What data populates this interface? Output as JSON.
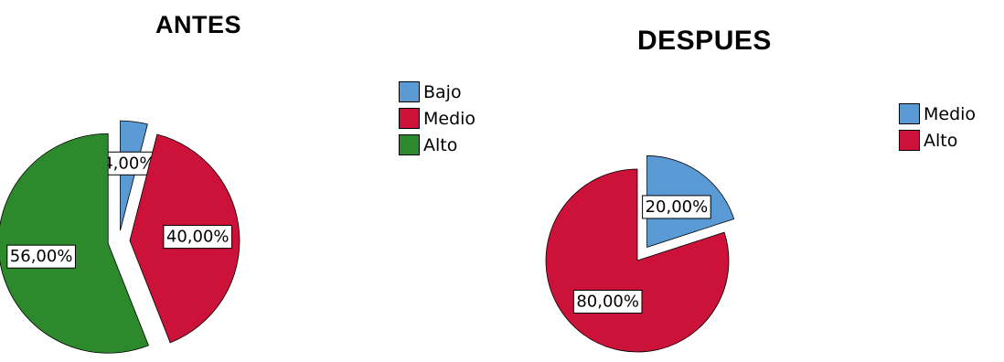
{
  "chart_data": [
    {
      "type": "pie",
      "title": "ANTES",
      "slices": [
        {
          "label": "Bajo",
          "value": 4.0,
          "display": "4,00%",
          "color": "#5b9bd5",
          "exploded": true
        },
        {
          "label": "Medio",
          "value": 40.0,
          "display": "40,00%",
          "color": "#cc1238",
          "exploded": true
        },
        {
          "label": "Alto",
          "value": 56.0,
          "display": "56,00%",
          "color": "#2c8a2c",
          "exploded": true
        }
      ],
      "legend": [
        "Bajo",
        "Medio",
        "Alto"
      ],
      "legend_position": "right"
    },
    {
      "type": "pie",
      "title": "DESPUES",
      "slices": [
        {
          "label": "Medio",
          "value": 20.0,
          "display": "20,00%",
          "color": "#5b9bd5",
          "exploded": true
        },
        {
          "label": "Alto",
          "value": 80.0,
          "display": "80,00%",
          "color": "#cc1238",
          "exploded": false
        }
      ],
      "legend": [
        "Medio",
        "Alto"
      ],
      "legend_position": "right"
    }
  ]
}
